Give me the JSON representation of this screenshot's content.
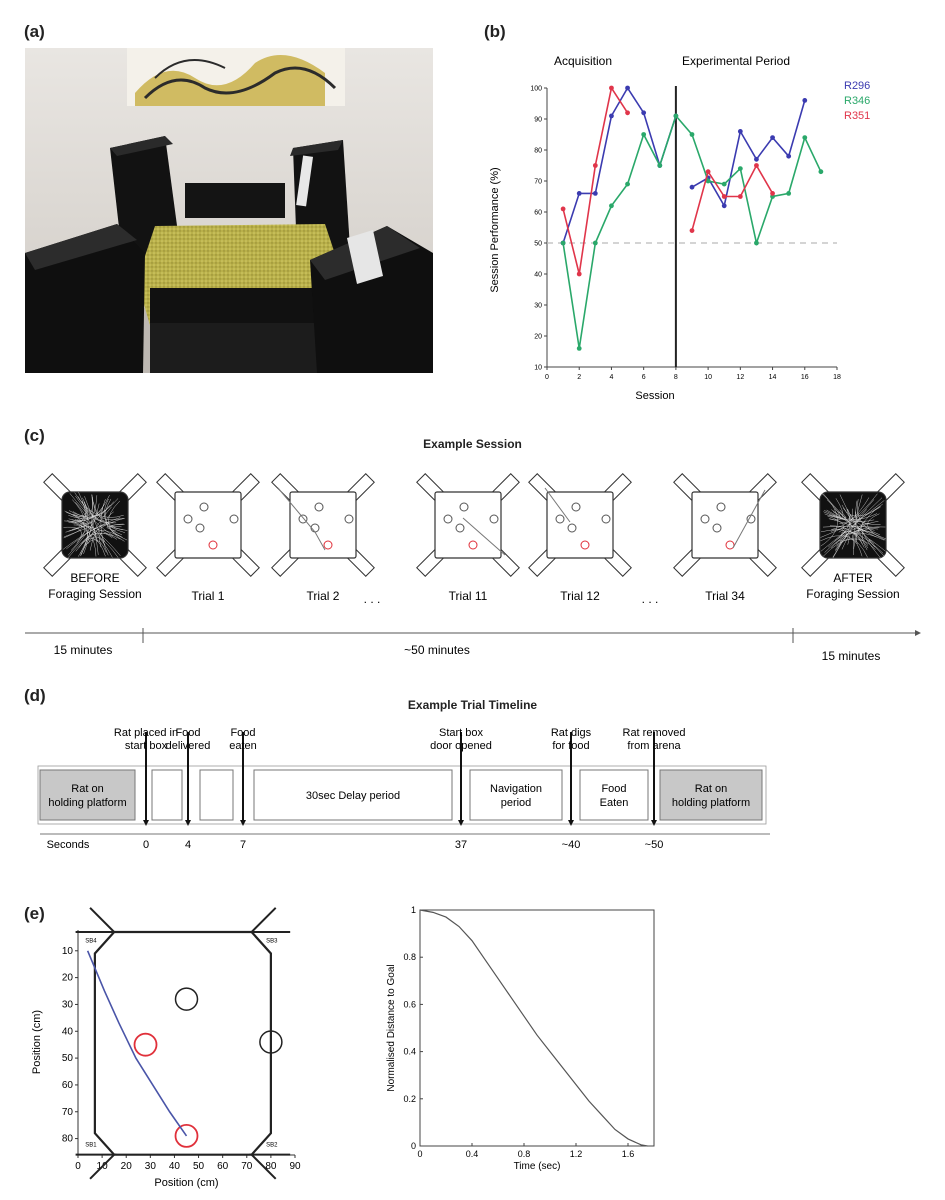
{
  "panels": {
    "a": "(a)",
    "b": "(b)",
    "c": "(c)",
    "d": "(d)",
    "e": "(e)"
  },
  "colors": {
    "R296": "#3b3bb0",
    "R346": "#2aa86a",
    "R351": "#e0354a",
    "path": "#4a55a8",
    "goal": "#e0303a"
  },
  "chart_b": {
    "type": "line",
    "section_labels": [
      "Acquisition",
      "Experimental Period"
    ],
    "xlabel": "Session",
    "ylabel": "Session Performance (%)",
    "xticks": [
      "0",
      "2",
      "4",
      "6",
      "8",
      "10",
      "12",
      "14",
      "16",
      "18"
    ],
    "yticks": [
      "10",
      "20",
      "30",
      "40",
      "50",
      "60",
      "70",
      "80",
      "90",
      "100"
    ],
    "xlim": [
      0,
      18
    ],
    "ylim": [
      10,
      100
    ],
    "chance_level": 50,
    "divider_session": 8,
    "series": [
      {
        "name": "R296",
        "color": "#3b3bb0",
        "segments": [
          [
            [
              1,
              50
            ],
            [
              2,
              66
            ],
            [
              3,
              66
            ],
            [
              4,
              91
            ],
            [
              5,
              100
            ],
            [
              6,
              92
            ],
            [
              7,
              75
            ],
            [
              8,
              91
            ]
          ],
          [
            [
              9,
              68
            ],
            [
              10,
              71
            ],
            [
              11,
              62
            ],
            [
              12,
              86
            ],
            [
              13,
              77
            ],
            [
              14,
              84
            ],
            [
              15,
              78
            ],
            [
              16,
              96
            ]
          ]
        ]
      },
      {
        "name": "R346",
        "color": "#2aa86a",
        "segments": [
          [
            [
              1,
              50
            ],
            [
              2,
              16
            ],
            [
              3,
              50
            ],
            [
              4,
              62
            ],
            [
              5,
              69
            ],
            [
              6,
              85
            ],
            [
              7,
              75
            ],
            [
              8,
              91
            ],
            [
              9,
              85
            ],
            [
              10,
              70
            ],
            [
              11,
              69
            ],
            [
              12,
              74
            ],
            [
              13,
              50
            ],
            [
              14,
              65
            ],
            [
              15,
              66
            ],
            [
              16,
              84
            ],
            [
              17,
              73
            ]
          ]
        ]
      },
      {
        "name": "R351",
        "color": "#e0354a",
        "segments": [
          [
            [
              1,
              61
            ],
            [
              2,
              40
            ],
            [
              3,
              75
            ],
            [
              4,
              100
            ],
            [
              5,
              92
            ]
          ],
          [
            [
              9,
              54
            ],
            [
              10,
              73
            ],
            [
              11,
              65
            ],
            [
              12,
              65
            ],
            [
              13,
              75
            ],
            [
              14,
              66
            ]
          ]
        ]
      }
    ]
  },
  "session_c": {
    "title": "Example Session",
    "arenas": [
      {
        "label": "BEFORE\nForaging Session"
      },
      {
        "label": "Trial 1"
      },
      {
        "label": "Trial 2"
      },
      {
        "label": "Trial 11"
      },
      {
        "label": "Trial 12"
      },
      {
        "label": "Trial 34"
      },
      {
        "label": "AFTER\nForaging Session"
      }
    ],
    "ellipsis": ". . .",
    "durations": [
      "15 minutes",
      "~50 minutes",
      "15 minutes"
    ]
  },
  "timeline_d": {
    "title": "Example Trial Timeline",
    "events": [
      {
        "label": "Rat placed in start box",
        "time": "0"
      },
      {
        "label": "Food delivered",
        "time": "4"
      },
      {
        "label": "Food eaten",
        "time": "7"
      },
      {
        "label": "Start box door opened",
        "time": "37"
      },
      {
        "label": "Rat digs for food",
        "time": "~40"
      },
      {
        "label": "Rat removed from arena",
        "time": "~50"
      }
    ],
    "boxes": [
      "Rat on holding platform",
      "30sec Delay period",
      "Navigation period",
      "Food Eaten",
      "Rat on holding platform"
    ],
    "axis_label": "Seconds"
  },
  "arena_e": {
    "xlabel": "Position (cm)",
    "ylabel": "Position (cm)",
    "xticks": [
      "0",
      "10",
      "20",
      "30",
      "40",
      "50",
      "60",
      "70",
      "80",
      "90"
    ],
    "yticks": [
      "10",
      "20",
      "30",
      "40",
      "50",
      "60",
      "70",
      "80"
    ],
    "startboxes": [
      "SB4",
      "SB3",
      "SB1",
      "SB2"
    ]
  },
  "chart_e": {
    "type": "line",
    "xlabel": "Time (sec)",
    "ylabel": "Normalised Distance to Goal",
    "xticks": [
      "0",
      "0.4",
      "0.8",
      "1.2",
      "1.6"
    ],
    "yticks": [
      "0",
      "0.2",
      "0.4",
      "0.6",
      "0.8",
      "1"
    ],
    "xlim": [
      0,
      1.8
    ],
    "ylim": [
      0,
      1
    ],
    "x": [
      0,
      0.1,
      0.2,
      0.3,
      0.4,
      0.5,
      0.6,
      0.7,
      0.8,
      0.9,
      1.0,
      1.1,
      1.2,
      1.3,
      1.4,
      1.5,
      1.6,
      1.7,
      1.75
    ],
    "y": [
      1,
      0.99,
      0.97,
      0.93,
      0.87,
      0.79,
      0.71,
      0.63,
      0.55,
      0.47,
      0.4,
      0.33,
      0.26,
      0.19,
      0.13,
      0.07,
      0.03,
      0.005,
      0
    ]
  }
}
